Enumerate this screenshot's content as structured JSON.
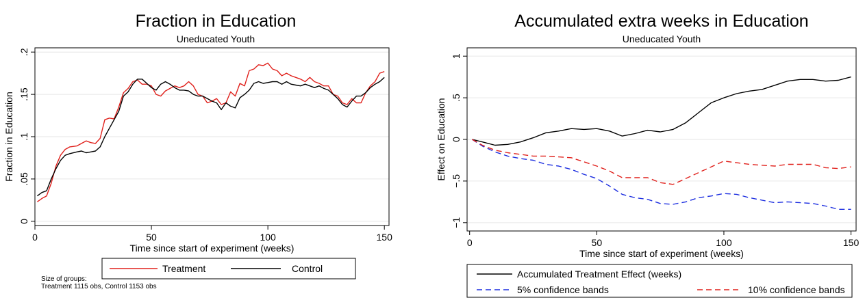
{
  "chart_data": [
    {
      "type": "line",
      "title": "Fraction in Education",
      "subtitle": "Uneducated Youth",
      "xlabel": "Time since start of experiment (weeks)",
      "ylabel": "Fraction in Education",
      "xlim": [
        0,
        152
      ],
      "ylim": [
        -0.005,
        0.205
      ],
      "xticks": [
        0,
        50,
        100,
        150
      ],
      "yticks": [
        0,
        0.05,
        0.1,
        0.15,
        0.2
      ],
      "ytick_labels": [
        "0",
        ".05",
        ".1",
        ".15",
        ".2"
      ],
      "grid": true,
      "legend_position": "bottom",
      "series": [
        {
          "name": "Treatment",
          "color": "#e0201b",
          "dash": "solid",
          "x": [
            1,
            3,
            5,
            7,
            9,
            11,
            13,
            15,
            18,
            20,
            22,
            24,
            26,
            28,
            30,
            32,
            34,
            36,
            38,
            40,
            42,
            44,
            46,
            48,
            50,
            52,
            54,
            56,
            58,
            60,
            62,
            64,
            66,
            68,
            70,
            72,
            74,
            76,
            78,
            80,
            82,
            84,
            86,
            88,
            90,
            92,
            94,
            96,
            98,
            100,
            102,
            104,
            106,
            108,
            110,
            112,
            114,
            116,
            118,
            120,
            122,
            124,
            126,
            128,
            130,
            132,
            134,
            136,
            138,
            140,
            142,
            144,
            146,
            148,
            150
          ],
          "values": [
            0.023,
            0.027,
            0.03,
            0.045,
            0.065,
            0.078,
            0.085,
            0.088,
            0.089,
            0.092,
            0.095,
            0.093,
            0.092,
            0.098,
            0.12,
            0.122,
            0.121,
            0.135,
            0.152,
            0.157,
            0.165,
            0.167,
            0.162,
            0.162,
            0.16,
            0.15,
            0.148,
            0.154,
            0.157,
            0.16,
            0.158,
            0.16,
            0.165,
            0.16,
            0.15,
            0.148,
            0.14,
            0.142,
            0.145,
            0.138,
            0.14,
            0.153,
            0.148,
            0.163,
            0.16,
            0.178,
            0.18,
            0.185,
            0.184,
            0.187,
            0.18,
            0.178,
            0.172,
            0.175,
            0.172,
            0.17,
            0.168,
            0.165,
            0.17,
            0.165,
            0.163,
            0.16,
            0.16,
            0.15,
            0.148,
            0.14,
            0.138,
            0.145,
            0.14,
            0.14,
            0.152,
            0.16,
            0.165,
            0.175,
            0.177
          ]
        },
        {
          "name": "Control",
          "color": "#000000",
          "dash": "solid",
          "x": [
            1,
            3,
            5,
            7,
            9,
            11,
            13,
            15,
            18,
            20,
            22,
            24,
            26,
            28,
            30,
            32,
            34,
            36,
            38,
            40,
            42,
            44,
            46,
            48,
            50,
            52,
            54,
            56,
            58,
            60,
            62,
            64,
            66,
            68,
            70,
            72,
            74,
            76,
            78,
            80,
            82,
            84,
            86,
            88,
            90,
            92,
            94,
            96,
            98,
            100,
            102,
            104,
            106,
            108,
            110,
            112,
            114,
            116,
            118,
            120,
            122,
            124,
            126,
            128,
            130,
            132,
            134,
            136,
            138,
            140,
            142,
            144,
            146,
            148,
            150
          ],
          "values": [
            0.03,
            0.034,
            0.036,
            0.05,
            0.062,
            0.072,
            0.078,
            0.08,
            0.082,
            0.083,
            0.081,
            0.082,
            0.083,
            0.088,
            0.1,
            0.11,
            0.12,
            0.13,
            0.148,
            0.153,
            0.162,
            0.168,
            0.168,
            0.163,
            0.158,
            0.155,
            0.162,
            0.165,
            0.162,
            0.158,
            0.155,
            0.155,
            0.154,
            0.15,
            0.148,
            0.148,
            0.145,
            0.142,
            0.14,
            0.132,
            0.14,
            0.136,
            0.134,
            0.146,
            0.15,
            0.155,
            0.163,
            0.165,
            0.163,
            0.164,
            0.165,
            0.165,
            0.162,
            0.165,
            0.162,
            0.161,
            0.16,
            0.162,
            0.16,
            0.158,
            0.16,
            0.157,
            0.155,
            0.15,
            0.145,
            0.138,
            0.135,
            0.142,
            0.148,
            0.148,
            0.152,
            0.158,
            0.162,
            0.165,
            0.17
          ]
        }
      ]
    },
    {
      "type": "line",
      "title": "Accumulated extra weeks in Education",
      "subtitle": "Uneducated Youth",
      "xlabel": "Time since start of experiment (weeks)",
      "ylabel": "Effect on Education",
      "xlim": [
        -1,
        152
      ],
      "ylim": [
        -1.1,
        1.1
      ],
      "xticks": [
        0,
        50,
        100,
        150
      ],
      "yticks": [
        -1,
        -0.5,
        0,
        0.5,
        1
      ],
      "ytick_labels": [
        "−1",
        "−.5",
        "0",
        ".5",
        "1"
      ],
      "grid": true,
      "legend_position": "bottom",
      "series": [
        {
          "name": "Accumulated Treatment Effect (weeks)",
          "color": "#000000",
          "dash": "solid",
          "x": [
            1,
            5,
            10,
            15,
            20,
            25,
            30,
            35,
            40,
            45,
            50,
            55,
            60,
            65,
            70,
            75,
            80,
            85,
            90,
            95,
            100,
            105,
            110,
            115,
            120,
            125,
            130,
            135,
            140,
            145,
            150
          ],
          "values": [
            0,
            -0.03,
            -0.07,
            -0.06,
            -0.03,
            0.02,
            0.08,
            0.1,
            0.13,
            0.12,
            0.13,
            0.1,
            0.04,
            0.07,
            0.11,
            0.09,
            0.12,
            0.2,
            0.32,
            0.44,
            0.5,
            0.55,
            0.58,
            0.6,
            0.65,
            0.7,
            0.72,
            0.72,
            0.7,
            0.71,
            0.75
          ]
        },
        {
          "name": "5% confidence bands",
          "color": "#1c2ee0",
          "dash": "dashed",
          "x": [
            1,
            5,
            10,
            15,
            20,
            25,
            30,
            35,
            40,
            45,
            50,
            55,
            60,
            65,
            70,
            75,
            80,
            85,
            90,
            95,
            100,
            105,
            110,
            115,
            120,
            125,
            130,
            135,
            140,
            145,
            150
          ],
          "values": [
            0,
            -0.08,
            -0.15,
            -0.2,
            -0.23,
            -0.25,
            -0.3,
            -0.32,
            -0.36,
            -0.42,
            -0.47,
            -0.56,
            -0.66,
            -0.7,
            -0.72,
            -0.77,
            -0.78,
            -0.75,
            -0.7,
            -0.68,
            -0.65,
            -0.66,
            -0.7,
            -0.73,
            -0.76,
            -0.75,
            -0.76,
            -0.77,
            -0.8,
            -0.84,
            -0.84
          ]
        },
        {
          "name": "10% confidence bands",
          "color": "#e0201b",
          "dash": "dashed",
          "x": [
            1,
            5,
            10,
            15,
            20,
            25,
            30,
            35,
            40,
            45,
            50,
            55,
            60,
            65,
            70,
            75,
            80,
            85,
            90,
            95,
            100,
            105,
            110,
            115,
            120,
            125,
            130,
            135,
            140,
            145,
            150
          ],
          "values": [
            0,
            -0.07,
            -0.13,
            -0.16,
            -0.18,
            -0.2,
            -0.2,
            -0.21,
            -0.22,
            -0.27,
            -0.32,
            -0.38,
            -0.46,
            -0.46,
            -0.46,
            -0.52,
            -0.54,
            -0.47,
            -0.4,
            -0.33,
            -0.26,
            -0.28,
            -0.3,
            -0.31,
            -0.32,
            -0.3,
            -0.3,
            -0.3,
            -0.34,
            -0.35,
            -0.33
          ]
        }
      ]
    }
  ],
  "note_lines": [
    "Size of groups:",
    "Treatment 1115 obs, Control 1153 obs"
  ]
}
